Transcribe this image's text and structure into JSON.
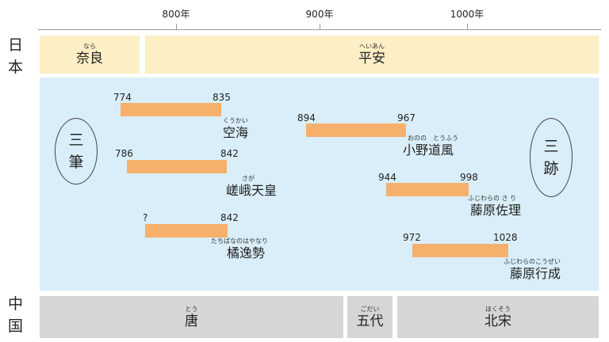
{
  "axis": {
    "ticks": [
      {
        "label": "800年",
        "year": 800
      },
      {
        "label": "900年",
        "year": 900
      },
      {
        "label": "1000年",
        "year": 1000
      }
    ]
  },
  "rows": {
    "japan": "日本",
    "china": "中国"
  },
  "japan_eras": [
    {
      "name": "奈良",
      "ruby": "なら"
    },
    {
      "name": "平安",
      "ruby": "へいあん"
    }
  ],
  "china_eras": [
    {
      "name": "唐",
      "ruby": "とう"
    },
    {
      "name": "五代",
      "ruby": "ごだい"
    },
    {
      "name": "北宋",
      "ruby": "ほくそう"
    }
  ],
  "groups": {
    "sanpitsu": [
      "三",
      "筆"
    ],
    "sanseki": [
      "三",
      "跡"
    ]
  },
  "people": [
    {
      "name": "空海",
      "ruby": "くうかい",
      "start": "774",
      "end": "835",
      "start_year": 774,
      "end_year": 835
    },
    {
      "name": "嵯峨天皇",
      "ruby": "さが",
      "start": "786",
      "end": "842",
      "start_year": 786,
      "end_year": 842
    },
    {
      "name": "橘逸勢",
      "ruby": "たちばなのはやなり",
      "start": "?",
      "end": "842",
      "start_year": null,
      "end_year": 842
    },
    {
      "name": "小野道風",
      "ruby": "おのの　とうふう",
      "start": "894",
      "end": "967",
      "start_year": 894,
      "end_year": 967
    },
    {
      "name": "藤原佐理",
      "ruby": "ふじわらの さ り",
      "start": "944",
      "end": "998",
      "start_year": 944,
      "end_year": 998
    },
    {
      "name": "藤原行成",
      "ruby": "ふじわらのこうぜい",
      "start": "972",
      "end": "1028",
      "start_year": 972,
      "end_year": 1028
    }
  ],
  "colors": {
    "japan_era_bg": "#fcefc5",
    "china_era_bg": "#d6d6d6",
    "panel_bg": "#d9eef9",
    "bar": "#f6b06c"
  }
}
